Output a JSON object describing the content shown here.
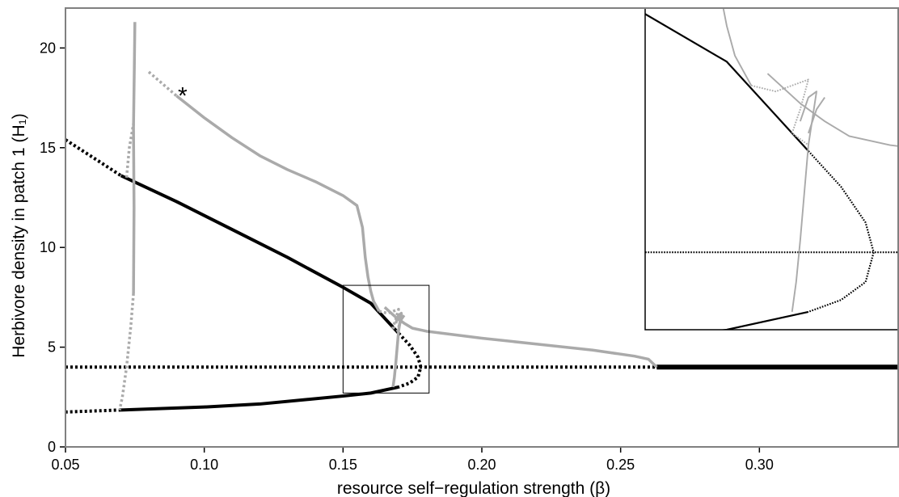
{
  "chart_data": {
    "type": "line",
    "xlabel": "resource self−regulation strength (β)",
    "ylabel": "Herbivore density in patch 1 (H₁)",
    "xlim": [
      0.05,
      0.35
    ],
    "ylim": [
      0,
      22
    ],
    "x_ticks": [
      "0.05",
      "0.10",
      "0.15",
      "0.20",
      "0.25",
      "0.30"
    ],
    "y_ticks": [
      "0",
      "5",
      "10",
      "15",
      "20"
    ],
    "grid": false,
    "annotation": "*",
    "colors": {
      "primary": "#000000",
      "secondary": "#aaaaaa"
    },
    "series": [
      {
        "color": "#000000",
        "style": "dotted",
        "points": [
          [
            0.05,
            15.4
          ],
          [
            0.06,
            14.5
          ],
          [
            0.07,
            13.6
          ]
        ]
      },
      {
        "color": "#000000",
        "style": "solid",
        "points": [
          [
            0.07,
            13.6
          ],
          [
            0.09,
            12.3
          ],
          [
            0.11,
            10.9
          ],
          [
            0.13,
            9.5
          ],
          [
            0.15,
            8.0
          ],
          [
            0.16,
            7.2
          ],
          [
            0.17,
            5.7
          ]
        ]
      },
      {
        "color": "#000000",
        "style": "dotted",
        "points": [
          [
            0.17,
            5.7
          ],
          [
            0.174,
            5.1
          ],
          [
            0.177,
            4.5
          ],
          [
            0.178,
            4.0
          ],
          [
            0.177,
            3.5
          ],
          [
            0.174,
            3.2
          ],
          [
            0.17,
            3.0
          ]
        ]
      },
      {
        "color": "#000000",
        "style": "solid",
        "points": [
          [
            0.17,
            3.0
          ],
          [
            0.16,
            2.7
          ],
          [
            0.15,
            2.55
          ],
          [
            0.12,
            2.15
          ],
          [
            0.1,
            2.0
          ],
          [
            0.07,
            1.85
          ]
        ]
      },
      {
        "color": "#000000",
        "style": "dotted",
        "points": [
          [
            0.07,
            1.85
          ],
          [
            0.06,
            1.8
          ],
          [
            0.05,
            1.75
          ]
        ]
      },
      {
        "color": "#000000",
        "style": "dotted",
        "points": [
          [
            0.05,
            4.0
          ],
          [
            0.263,
            4.0
          ]
        ]
      },
      {
        "color": "#000000",
        "style": "solid-thick",
        "points": [
          [
            0.263,
            4.0
          ],
          [
            0.35,
            4.0
          ]
        ]
      },
      {
        "color": "#aaaaaa",
        "style": "solid",
        "points": [
          [
            0.0745,
            7.7
          ],
          [
            0.0747,
            12.0
          ],
          [
            0.0745,
            16.0
          ],
          [
            0.0748,
            19.0
          ],
          [
            0.075,
            21.3
          ]
        ]
      },
      {
        "color": "#aaaaaa",
        "style": "dotted",
        "points": [
          [
            0.0745,
            7.7
          ],
          [
            0.0735,
            6.0
          ],
          [
            0.072,
            4.0
          ],
          [
            0.0705,
            2.5
          ],
          [
            0.0695,
            1.85
          ]
        ]
      },
      {
        "color": "#aaaaaa",
        "style": "dotted",
        "points": [
          [
            0.072,
            13.5
          ],
          [
            0.073,
            15.0
          ],
          [
            0.0745,
            16.2
          ]
        ]
      },
      {
        "color": "#aaaaaa",
        "style": "dotted",
        "points": [
          [
            0.08,
            18.8
          ],
          [
            0.085,
            18.2
          ],
          [
            0.09,
            17.6
          ]
        ]
      },
      {
        "color": "#aaaaaa",
        "style": "solid",
        "points": [
          [
            0.09,
            17.6
          ],
          [
            0.1,
            16.5
          ],
          [
            0.11,
            15.5
          ],
          [
            0.12,
            14.6
          ],
          [
            0.13,
            13.9
          ],
          [
            0.14,
            13.3
          ],
          [
            0.15,
            12.6
          ],
          [
            0.155,
            12.1
          ],
          [
            0.157,
            11.0
          ],
          [
            0.158,
            9.5
          ],
          [
            0.159,
            8.5
          ],
          [
            0.16,
            7.8
          ],
          [
            0.161,
            7.3
          ],
          [
            0.163,
            6.8
          ]
        ]
      },
      {
        "color": "#aaaaaa",
        "style": "dotted",
        "points": [
          [
            0.163,
            6.8
          ],
          [
            0.166,
            6.7
          ],
          [
            0.168,
            6.8
          ],
          [
            0.17,
            6.9
          ],
          [
            0.169,
            6.4
          ],
          [
            0.168,
            6.0
          ],
          [
            0.17,
            5.8
          ]
        ]
      },
      {
        "color": "#aaaaaa",
        "style": "solid",
        "points": [
          [
            0.165,
            7.0
          ],
          [
            0.169,
            6.5
          ],
          [
            0.172,
            6.2
          ],
          [
            0.175,
            5.95
          ],
          [
            0.18,
            5.8
          ],
          [
            0.2,
            5.45
          ],
          [
            0.22,
            5.15
          ],
          [
            0.24,
            4.85
          ],
          [
            0.255,
            4.55
          ],
          [
            0.26,
            4.4
          ],
          [
            0.263,
            4.0
          ]
        ]
      },
      {
        "color": "#aaaaaa",
        "style": "solid",
        "points": [
          [
            0.17,
            6.0
          ],
          [
            0.171,
            6.4
          ],
          [
            0.172,
            6.6
          ]
        ]
      },
      {
        "color": "#aaaaaa",
        "style": "solid",
        "points": [
          [
            0.169,
            6.2
          ],
          [
            0.17,
            6.6
          ],
          [
            0.171,
            6.7
          ],
          [
            0.17,
            5.8
          ],
          [
            0.1695,
            5.0
          ],
          [
            0.169,
            4.2
          ],
          [
            0.1685,
            3.5
          ],
          [
            0.168,
            3.0
          ]
        ]
      }
    ],
    "inset": {
      "xlim": [
        0.15,
        0.181
      ],
      "ylim": [
        2.7,
        8.1
      ],
      "source_box": {
        "x": [
          0.15,
          0.181
        ],
        "y": [
          2.7,
          8.1
        ]
      }
    }
  }
}
